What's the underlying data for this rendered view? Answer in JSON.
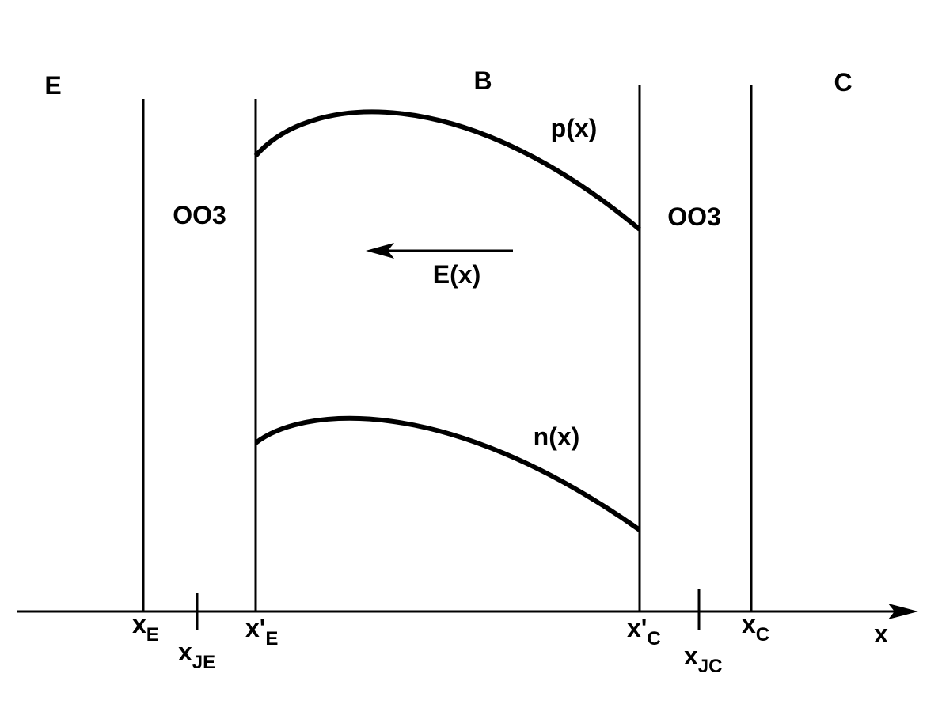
{
  "regions": [
    "E",
    "B",
    "C"
  ],
  "oxide_labels": [
    "OO3",
    "OO3"
  ],
  "curves": {
    "p": "p(x)",
    "n": "n(x)",
    "field": "E(x)"
  },
  "axis": {
    "label": "x",
    "points": [
      {
        "main": "x",
        "sub": "E"
      },
      {
        "main": "x",
        "sub": "JE"
      },
      {
        "main": "x'",
        "sub": "E"
      },
      {
        "main": "x'",
        "sub": "C"
      },
      {
        "main": "x",
        "sub": "JC"
      },
      {
        "main": "x",
        "sub": "C"
      }
    ]
  }
}
